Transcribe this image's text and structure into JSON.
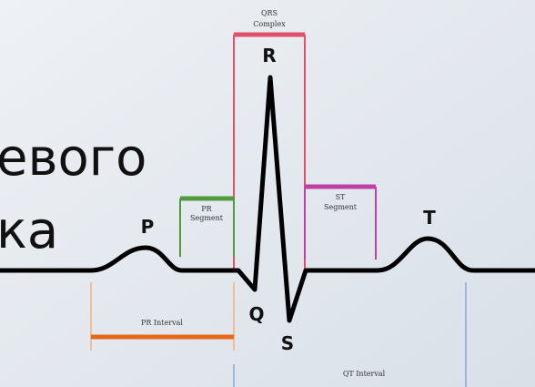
{
  "slide_text": [
    "евого",
    "ка"
  ],
  "waves": {
    "p": "P",
    "q": "Q",
    "r": "R",
    "s": "S",
    "t": "T"
  },
  "segments": {
    "qrs": [
      "QRS",
      "Complex"
    ],
    "pr": [
      "PR",
      "Segment"
    ],
    "st": [
      "ST",
      "Segment"
    ]
  },
  "intervals": {
    "pr": "PR Interval",
    "qt": "QT Interval"
  }
}
